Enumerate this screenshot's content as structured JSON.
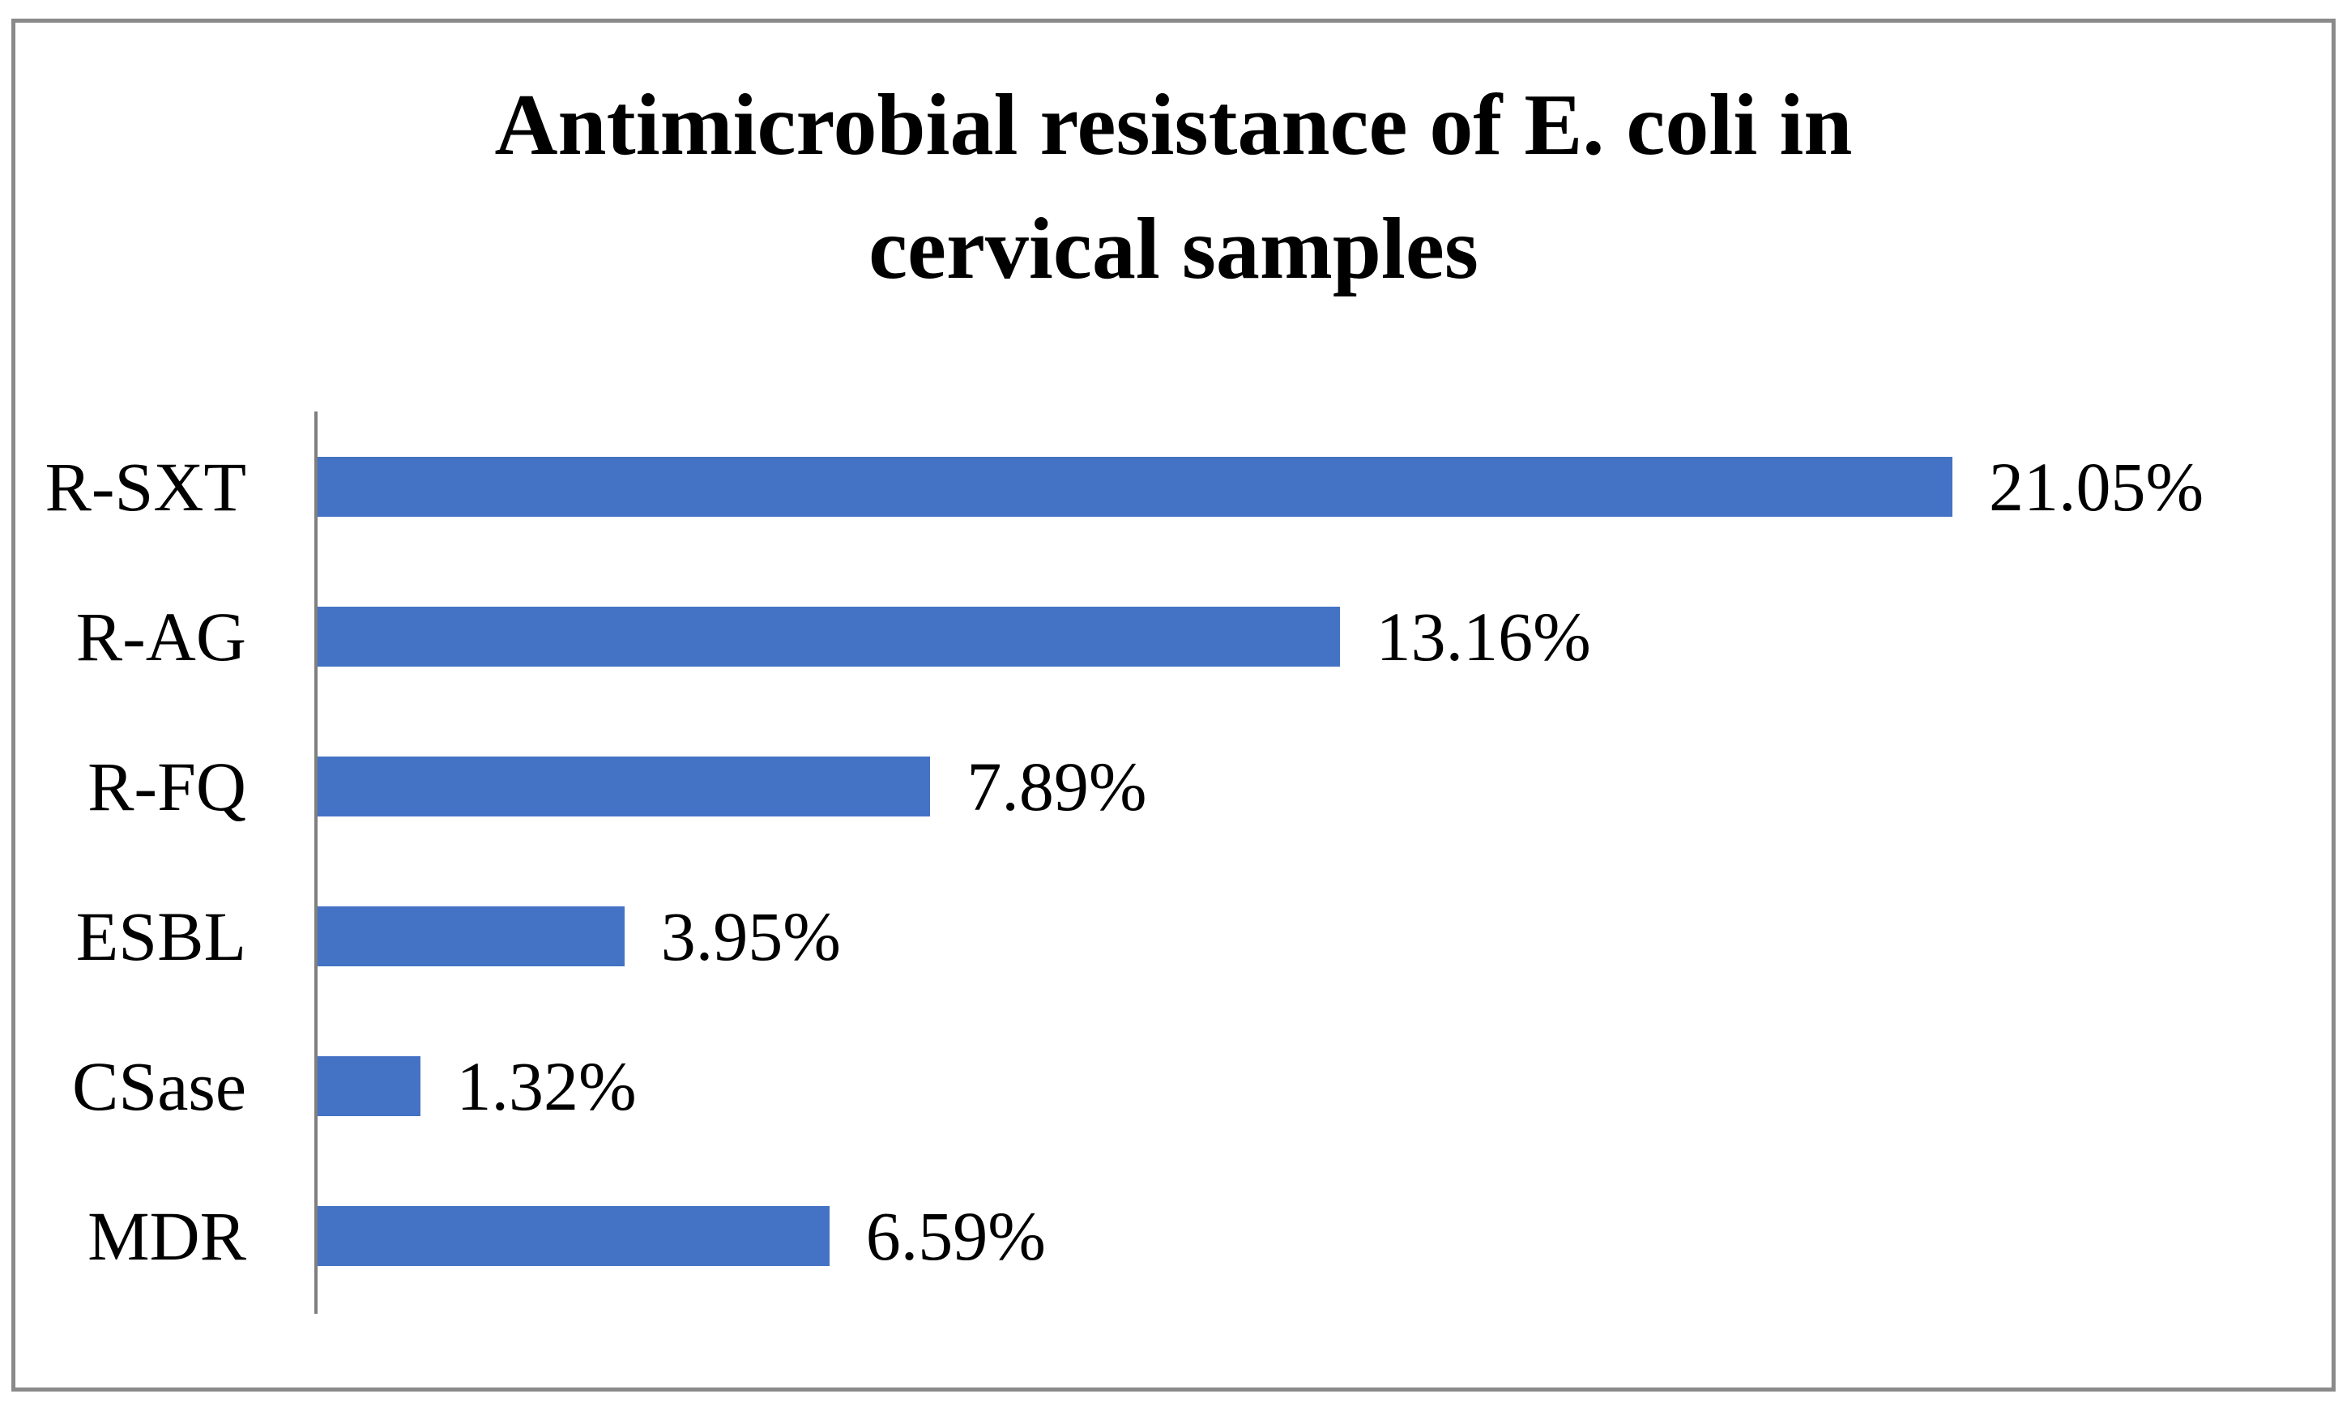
{
  "chart_data": {
    "type": "bar",
    "orientation": "horizontal",
    "title": "Antimicrobial resistance of E. coli in cervical samples",
    "title_lines": [
      "Antimicrobial resistance of E. coli in",
      "cervical samples"
    ],
    "categories": [
      "R-SXT",
      "R-AG",
      "R-FQ",
      "ESBL",
      "CSase",
      "MDR"
    ],
    "values": [
      21.05,
      13.16,
      7.89,
      3.95,
      1.32,
      6.59
    ],
    "value_labels": [
      "21.05%",
      "13.16%",
      "7.89%",
      "3.95%",
      "1.32%",
      "6.59%"
    ],
    "unit": "%",
    "xlabel": "",
    "ylabel": "",
    "xlim": [
      0,
      22
    ],
    "grid": false,
    "legend": false,
    "layout_hints": {
      "category_axis_side": "left",
      "value_labels_position": "outside-end"
    },
    "colors": {
      "bar": "#4472C4",
      "axis_line": "#7F7F7F",
      "frame_border": "#8A8A8A",
      "text": "#000000",
      "background": "#FFFFFF"
    }
  }
}
